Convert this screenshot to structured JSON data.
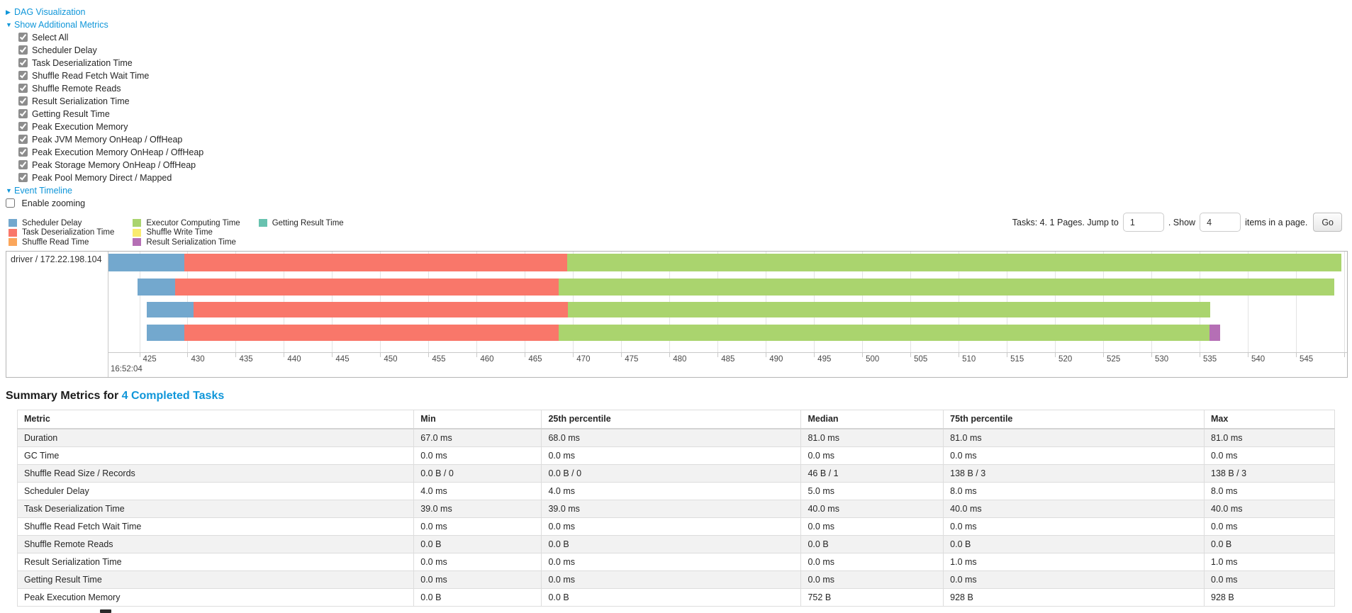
{
  "panels": {
    "dag": {
      "label": "DAG Visualization"
    },
    "additional_metrics": {
      "label": "Show Additional Metrics"
    },
    "event_timeline": {
      "label": "Event Timeline"
    }
  },
  "metrics_panel": {
    "items": [
      {
        "label": "Select All",
        "checked": true
      },
      {
        "label": "Scheduler Delay",
        "checked": true
      },
      {
        "label": "Task Deserialization Time",
        "checked": true
      },
      {
        "label": "Shuffle Read Fetch Wait Time",
        "checked": true
      },
      {
        "label": "Shuffle Remote Reads",
        "checked": true
      },
      {
        "label": "Result Serialization Time",
        "checked": true
      },
      {
        "label": "Getting Result Time",
        "checked": true
      },
      {
        "label": "Peak Execution Memory",
        "checked": true
      },
      {
        "label": "Peak JVM Memory OnHeap / OffHeap",
        "checked": true
      },
      {
        "label": "Peak Execution Memory OnHeap / OffHeap",
        "checked": true
      },
      {
        "label": "Peak Storage Memory OnHeap / OffHeap",
        "checked": true
      },
      {
        "label": "Peak Pool Memory Direct / Mapped",
        "checked": true
      }
    ]
  },
  "enable_zooming": {
    "label": "Enable zooming",
    "checked": false
  },
  "colors": {
    "link": "#0f96d9",
    "scheduler_delay": "#73A8CE",
    "task_deserialization": "#F9776A",
    "shuffle_read": "#FBA65B",
    "executor_computing": "#AAD46E",
    "shuffle_write": "#F9EB6E",
    "result_serialization": "#B56FB5",
    "getting_result": "#68C2AF"
  },
  "legend": {
    "columns": [
      [
        {
          "label": "Scheduler Delay",
          "key": "scheduler_delay"
        },
        {
          "label": "Task Deserialization Time",
          "key": "task_deserialization"
        },
        {
          "label": "Shuffle Read Time",
          "key": "shuffle_read"
        }
      ],
      [
        {
          "label": "Executor Computing Time",
          "key": "executor_computing"
        },
        {
          "label": "Shuffle Write Time",
          "key": "shuffle_write"
        },
        {
          "label": "Result Serialization Time",
          "key": "result_serialization"
        }
      ],
      [
        {
          "label": "Getting Result Time",
          "key": "getting_result"
        }
      ]
    ]
  },
  "pagination": {
    "prefix": "Tasks: 4. 1 Pages. Jump to",
    "jump_value": "1",
    "mid": ". Show",
    "show_value": "4",
    "suffix": "items in a page.",
    "go_label": "Go"
  },
  "chart_data": {
    "type": "timeline",
    "title": "Event Timeline",
    "row_label": "driver / 172.22.198.104",
    "x_axis": {
      "min": 421.8,
      "max": 550.3,
      "tick_start": 425,
      "tick_end": 550,
      "tick_step": 5,
      "major_label": "16:52:04",
      "unit": "ms within second 16:52:04+"
    },
    "tasks": [
      {
        "segments": [
          {
            "key": "scheduler_delay",
            "start": 421.8,
            "end": 429.7
          },
          {
            "key": "task_deserialization",
            "start": 429.7,
            "end": 469.4
          },
          {
            "key": "executor_computing",
            "start": 469.4,
            "end": 549.7
          }
        ]
      },
      {
        "segments": [
          {
            "key": "scheduler_delay",
            "start": 424.8,
            "end": 428.7
          },
          {
            "key": "task_deserialization",
            "start": 428.7,
            "end": 468.5
          },
          {
            "key": "executor_computing",
            "start": 468.5,
            "end": 549.0
          }
        ]
      },
      {
        "segments": [
          {
            "key": "scheduler_delay",
            "start": 425.8,
            "end": 430.6
          },
          {
            "key": "task_deserialization",
            "start": 430.6,
            "end": 469.5
          },
          {
            "key": "executor_computing",
            "start": 469.5,
            "end": 536.1
          }
        ]
      },
      {
        "segments": [
          {
            "key": "scheduler_delay",
            "start": 425.8,
            "end": 429.7
          },
          {
            "key": "task_deserialization",
            "start": 429.7,
            "end": 468.5
          },
          {
            "key": "executor_computing",
            "start": 468.5,
            "end": 536.0
          },
          {
            "key": "result_serialization",
            "start": 536.0,
            "end": 537.1
          }
        ]
      }
    ]
  },
  "summary": {
    "title_prefix": "Summary Metrics for ",
    "title_link": "4 Completed Tasks",
    "table": {
      "headers": [
        "Metric",
        "Min",
        "25th percentile",
        "Median",
        "75th percentile",
        "Max"
      ],
      "rows": [
        {
          "metric": "Duration",
          "values": [
            "67.0 ms",
            "68.0 ms",
            "81.0 ms",
            "81.0 ms",
            "81.0 ms"
          ]
        },
        {
          "metric": "GC Time",
          "values": [
            "0.0 ms",
            "0.0 ms",
            "0.0 ms",
            "0.0 ms",
            "0.0 ms"
          ]
        },
        {
          "metric": "Shuffle Read Size / Records",
          "values": [
            "0.0 B / 0",
            "0.0 B / 0",
            "46 B / 1",
            "138 B / 3",
            "138 B / 3"
          ]
        },
        {
          "metric": "Scheduler Delay",
          "values": [
            "4.0 ms",
            "4.0 ms",
            "5.0 ms",
            "8.0 ms",
            "8.0 ms"
          ]
        },
        {
          "metric": "Task Deserialization Time",
          "values": [
            "39.0 ms",
            "39.0 ms",
            "40.0 ms",
            "40.0 ms",
            "40.0 ms"
          ]
        },
        {
          "metric": "Shuffle Read Fetch Wait Time",
          "values": [
            "0.0 ms",
            "0.0 ms",
            "0.0 ms",
            "0.0 ms",
            "0.0 ms"
          ]
        },
        {
          "metric": "Shuffle Remote Reads",
          "values": [
            "0.0 B",
            "0.0 B",
            "0.0 B",
            "0.0 B",
            "0.0 B"
          ]
        },
        {
          "metric": "Result Serialization Time",
          "values": [
            "0.0 ms",
            "0.0 ms",
            "0.0 ms",
            "1.0 ms",
            "1.0 ms"
          ]
        },
        {
          "metric": "Getting Result Time",
          "values": [
            "0.0 ms",
            "0.0 ms",
            "0.0 ms",
            "0.0 ms",
            "0.0 ms"
          ]
        },
        {
          "metric": "Peak Execution Memory",
          "values": [
            "0.0 B",
            "0.0 B",
            "752 B",
            "928 B",
            "928 B"
          ]
        }
      ]
    }
  }
}
